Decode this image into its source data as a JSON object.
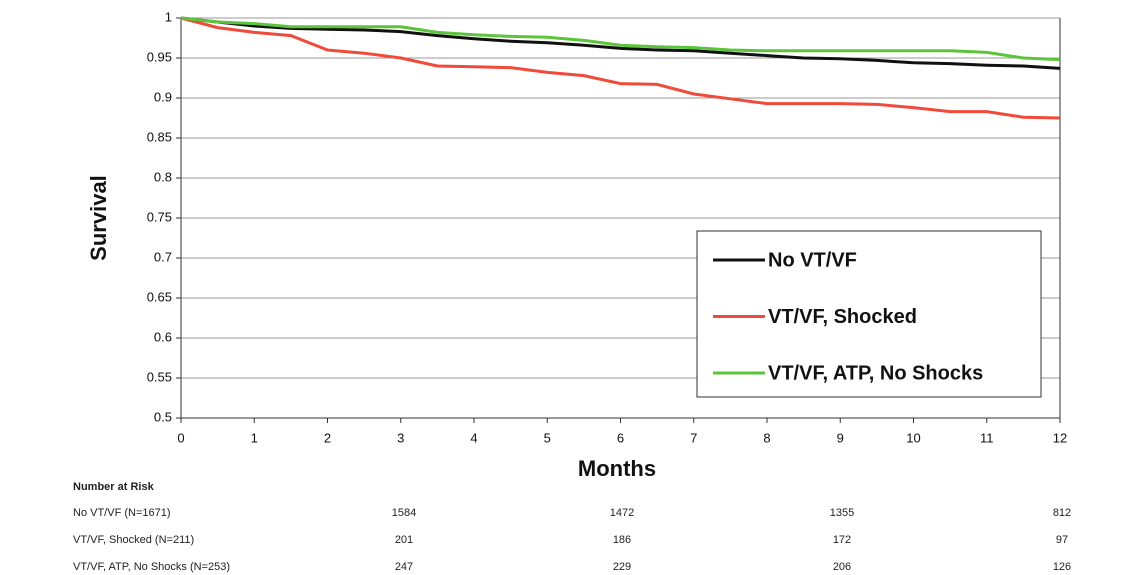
{
  "chart_data": {
    "type": "line",
    "x_label": "Months",
    "y_label": "Survival",
    "x": [
      0,
      0.5,
      1,
      1.5,
      2,
      2.5,
      3,
      3.5,
      4,
      4.5,
      5,
      5.5,
      6,
      6.5,
      7,
      7.5,
      8,
      8.5,
      9,
      9.5,
      10,
      10.5,
      11,
      11.5,
      12
    ],
    "series": [
      {
        "name": "No VT/VF",
        "color": "#111111",
        "values": [
          1,
          0.995,
          0.99,
          0.987,
          0.986,
          0.985,
          0.983,
          0.978,
          0.974,
          0.971,
          0.969,
          0.966,
          0.962,
          0.96,
          0.959,
          0.956,
          0.953,
          0.95,
          0.949,
          0.947,
          0.944,
          0.943,
          0.941,
          0.94,
          0.937
        ]
      },
      {
        "name": "VT/VF, Shocked",
        "color": "#f04a3a",
        "values": [
          1,
          0.988,
          0.982,
          0.978,
          0.96,
          0.956,
          0.95,
          0.94,
          0.939,
          0.938,
          0.932,
          0.928,
          0.918,
          0.917,
          0.905,
          0.899,
          0.893,
          0.893,
          0.893,
          0.892,
          0.888,
          0.883,
          0.883,
          0.876,
          0.875
        ]
      },
      {
        "name": "VT/VF, ATP, No Shocks",
        "color": "#5cc43a",
        "values": [
          1,
          0.995,
          0.993,
          0.989,
          0.989,
          0.989,
          0.989,
          0.982,
          0.979,
          0.977,
          0.976,
          0.972,
          0.966,
          0.964,
          0.963,
          0.96,
          0.959,
          0.959,
          0.959,
          0.959,
          0.959,
          0.959,
          0.957,
          0.95,
          0.948
        ]
      }
    ],
    "xlim": [
      0,
      12
    ],
    "xticks": [
      0,
      1,
      2,
      3,
      4,
      5,
      6,
      7,
      8,
      9,
      10,
      11,
      12
    ],
    "ylim": [
      0.5,
      1
    ],
    "yticks": [
      0.5,
      0.55,
      0.6,
      0.65,
      0.7,
      0.75,
      0.8,
      0.85,
      0.9,
      0.95,
      1
    ],
    "grid": true,
    "legend": "right"
  },
  "risk_table": {
    "title": "Number at Risk",
    "rows": [
      {
        "label": "No VT/VF (N=1671)",
        "values": [
          1584,
          1472,
          1355,
          812
        ]
      },
      {
        "label": "VT/VF, Shocked (N=211)",
        "values": [
          201,
          186,
          172,
          97
        ]
      },
      {
        "label": "VT/VF, ATP, No Shocks (N=253)",
        "values": [
          247,
          229,
          206,
          126
        ]
      }
    ]
  }
}
